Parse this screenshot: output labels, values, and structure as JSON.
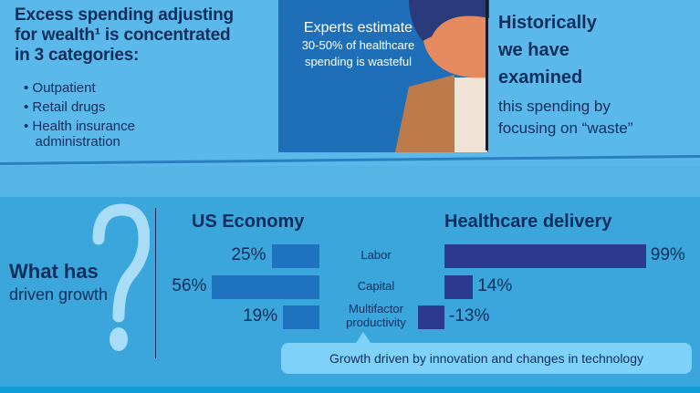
{
  "top": {
    "heading": "Excess spending adjusting for wealth¹ is concentrated in 3 categories:",
    "heading_lines": [
      "Excess spending adjusting",
      "for wealth¹ is concentrated",
      "in 3 categories:"
    ],
    "bullets": [
      "Outpatient",
      "Retail drugs",
      "Health insurance",
      "administration"
    ],
    "experts": {
      "line1": "Experts estimate",
      "line2": "30-50% of healthcare",
      "line3": "spending is wasteful"
    },
    "historically": {
      "bold": [
        "Historically",
        "we have",
        "examined"
      ],
      "rest": [
        "this spending by",
        "focusing on “waste”"
      ]
    }
  },
  "growth": {
    "title_bold": "What has",
    "title_rest": "driven growth",
    "callout": "Growth driven by innovation and changes in technology"
  },
  "chart_data": {
    "type": "bar",
    "categories": [
      "Labor",
      "Capital",
      "Multifactor productivity"
    ],
    "category_lines": [
      [
        "Labor"
      ],
      [
        "Capital"
      ],
      [
        "Multifactor",
        "productivity"
      ]
    ],
    "series": [
      {
        "name": "US Economy",
        "values": [
          25,
          56,
          19
        ],
        "labels": [
          "25%",
          "56%",
          "19%"
        ],
        "color": "#1f72bd"
      },
      {
        "name": "Healthcare delivery",
        "values": [
          99,
          14,
          -13
        ],
        "labels": [
          "99%",
          "14%",
          "-13%"
        ],
        "color": "#2b3a8f"
      }
    ],
    "unit": "%"
  }
}
